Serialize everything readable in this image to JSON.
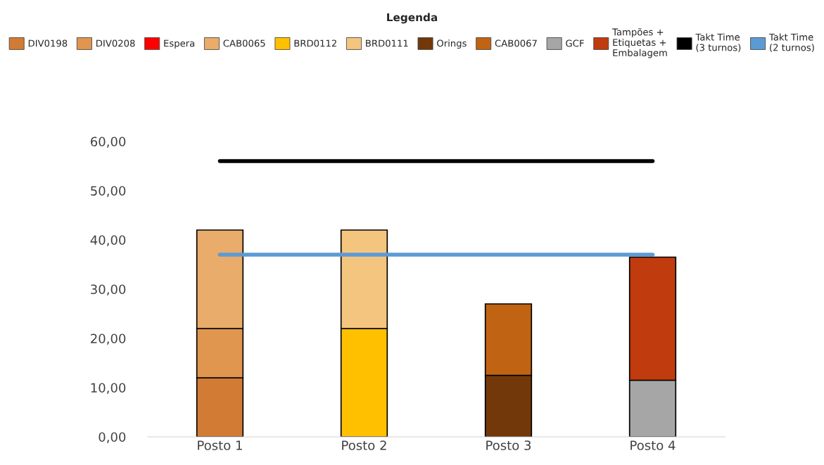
{
  "chart_data": {
    "type": "bar",
    "stacked": true,
    "legend_title": "Legenda",
    "legend": "top",
    "grid": false,
    "categories": [
      "Posto 1",
      "Posto 2",
      "Posto 3",
      "Posto 4"
    ],
    "series": [
      {
        "name": "DIV0198",
        "color": "#d27b35",
        "values": [
          12,
          null,
          null,
          null
        ]
      },
      {
        "name": "DIV0208",
        "color": "#e0964e",
        "values": [
          10,
          null,
          null,
          null
        ]
      },
      {
        "name": "Espera",
        "color": "#ff0000",
        "values": [
          null,
          null,
          null,
          null
        ]
      },
      {
        "name": "CAB0065",
        "color": "#e9ac6a",
        "values": [
          20,
          null,
          null,
          null
        ]
      },
      {
        "name": "BRD0112",
        "color": "#ffc000",
        "values": [
          null,
          22,
          null,
          null
        ]
      },
      {
        "name": "BRD0111",
        "color": "#f3c57f",
        "values": [
          null,
          20,
          null,
          null
        ]
      },
      {
        "name": "Orings",
        "color": "#73380a",
        "values": [
          null,
          null,
          12.5,
          null
        ]
      },
      {
        "name": "CAB0067",
        "color": "#c06313",
        "values": [
          null,
          null,
          14.5,
          null
        ]
      },
      {
        "name": "GCF",
        "color": "#a6a6a6",
        "values": [
          null,
          null,
          null,
          11.5
        ]
      },
      {
        "name": "Tampões +\nEtiquetas +\nEmbalagem",
        "color": "#c03b0e",
        "values": [
          null,
          null,
          null,
          25
        ]
      },
      {
        "name": "Takt Time\n(3 turnos)",
        "type": "line",
        "color": "#000000",
        "values": [
          56,
          56,
          56,
          56
        ]
      },
      {
        "name": "Takt Time\n(2 turnos)",
        "type": "line",
        "color": "#5b9bd5",
        "values": [
          37,
          37,
          37,
          37
        ]
      }
    ],
    "ylim": [
      0,
      60
    ],
    "yticks": [
      {
        "value": 0,
        "label": "0,00"
      },
      {
        "value": 10,
        "label": "10,00"
      },
      {
        "value": 20,
        "label": "20,00"
      },
      {
        "value": 30,
        "label": "30,00"
      },
      {
        "value": 40,
        "label": "40,00"
      },
      {
        "value": 50,
        "label": "50,00"
      },
      {
        "value": 60,
        "label": "60,00"
      }
    ]
  }
}
